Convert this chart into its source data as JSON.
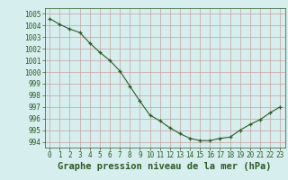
{
  "x": [
    0,
    1,
    2,
    3,
    4,
    5,
    6,
    7,
    8,
    9,
    10,
    11,
    12,
    13,
    14,
    15,
    16,
    17,
    18,
    19,
    20,
    21,
    22,
    23
  ],
  "y": [
    1004.6,
    1004.1,
    1003.7,
    1003.4,
    1002.5,
    1001.7,
    1001.0,
    1000.1,
    998.8,
    997.5,
    996.3,
    995.8,
    995.2,
    994.7,
    994.3,
    994.1,
    994.1,
    994.3,
    994.4,
    995.0,
    995.5,
    995.9,
    996.5,
    997.0
  ],
  "ylim": [
    993.5,
    1005.5
  ],
  "yticks": [
    994,
    995,
    996,
    997,
    998,
    999,
    1000,
    1001,
    1002,
    1003,
    1004,
    1005
  ],
  "xticks": [
    0,
    1,
    2,
    3,
    4,
    5,
    6,
    7,
    8,
    9,
    10,
    11,
    12,
    13,
    14,
    15,
    16,
    17,
    18,
    19,
    20,
    21,
    22,
    23
  ],
  "xlabel": "Graphe pression niveau de la mer (hPa)",
  "line_color": "#2d5a27",
  "marker": "+",
  "marker_color": "#2d5a27",
  "bg_color": "#d6eeee",
  "grid_color": "#c9a0a0",
  "tick_label_color": "#2d5a27",
  "xlabel_color": "#2d5a27",
  "tick_fontsize": 5.5,
  "xlabel_fontsize": 7.5
}
